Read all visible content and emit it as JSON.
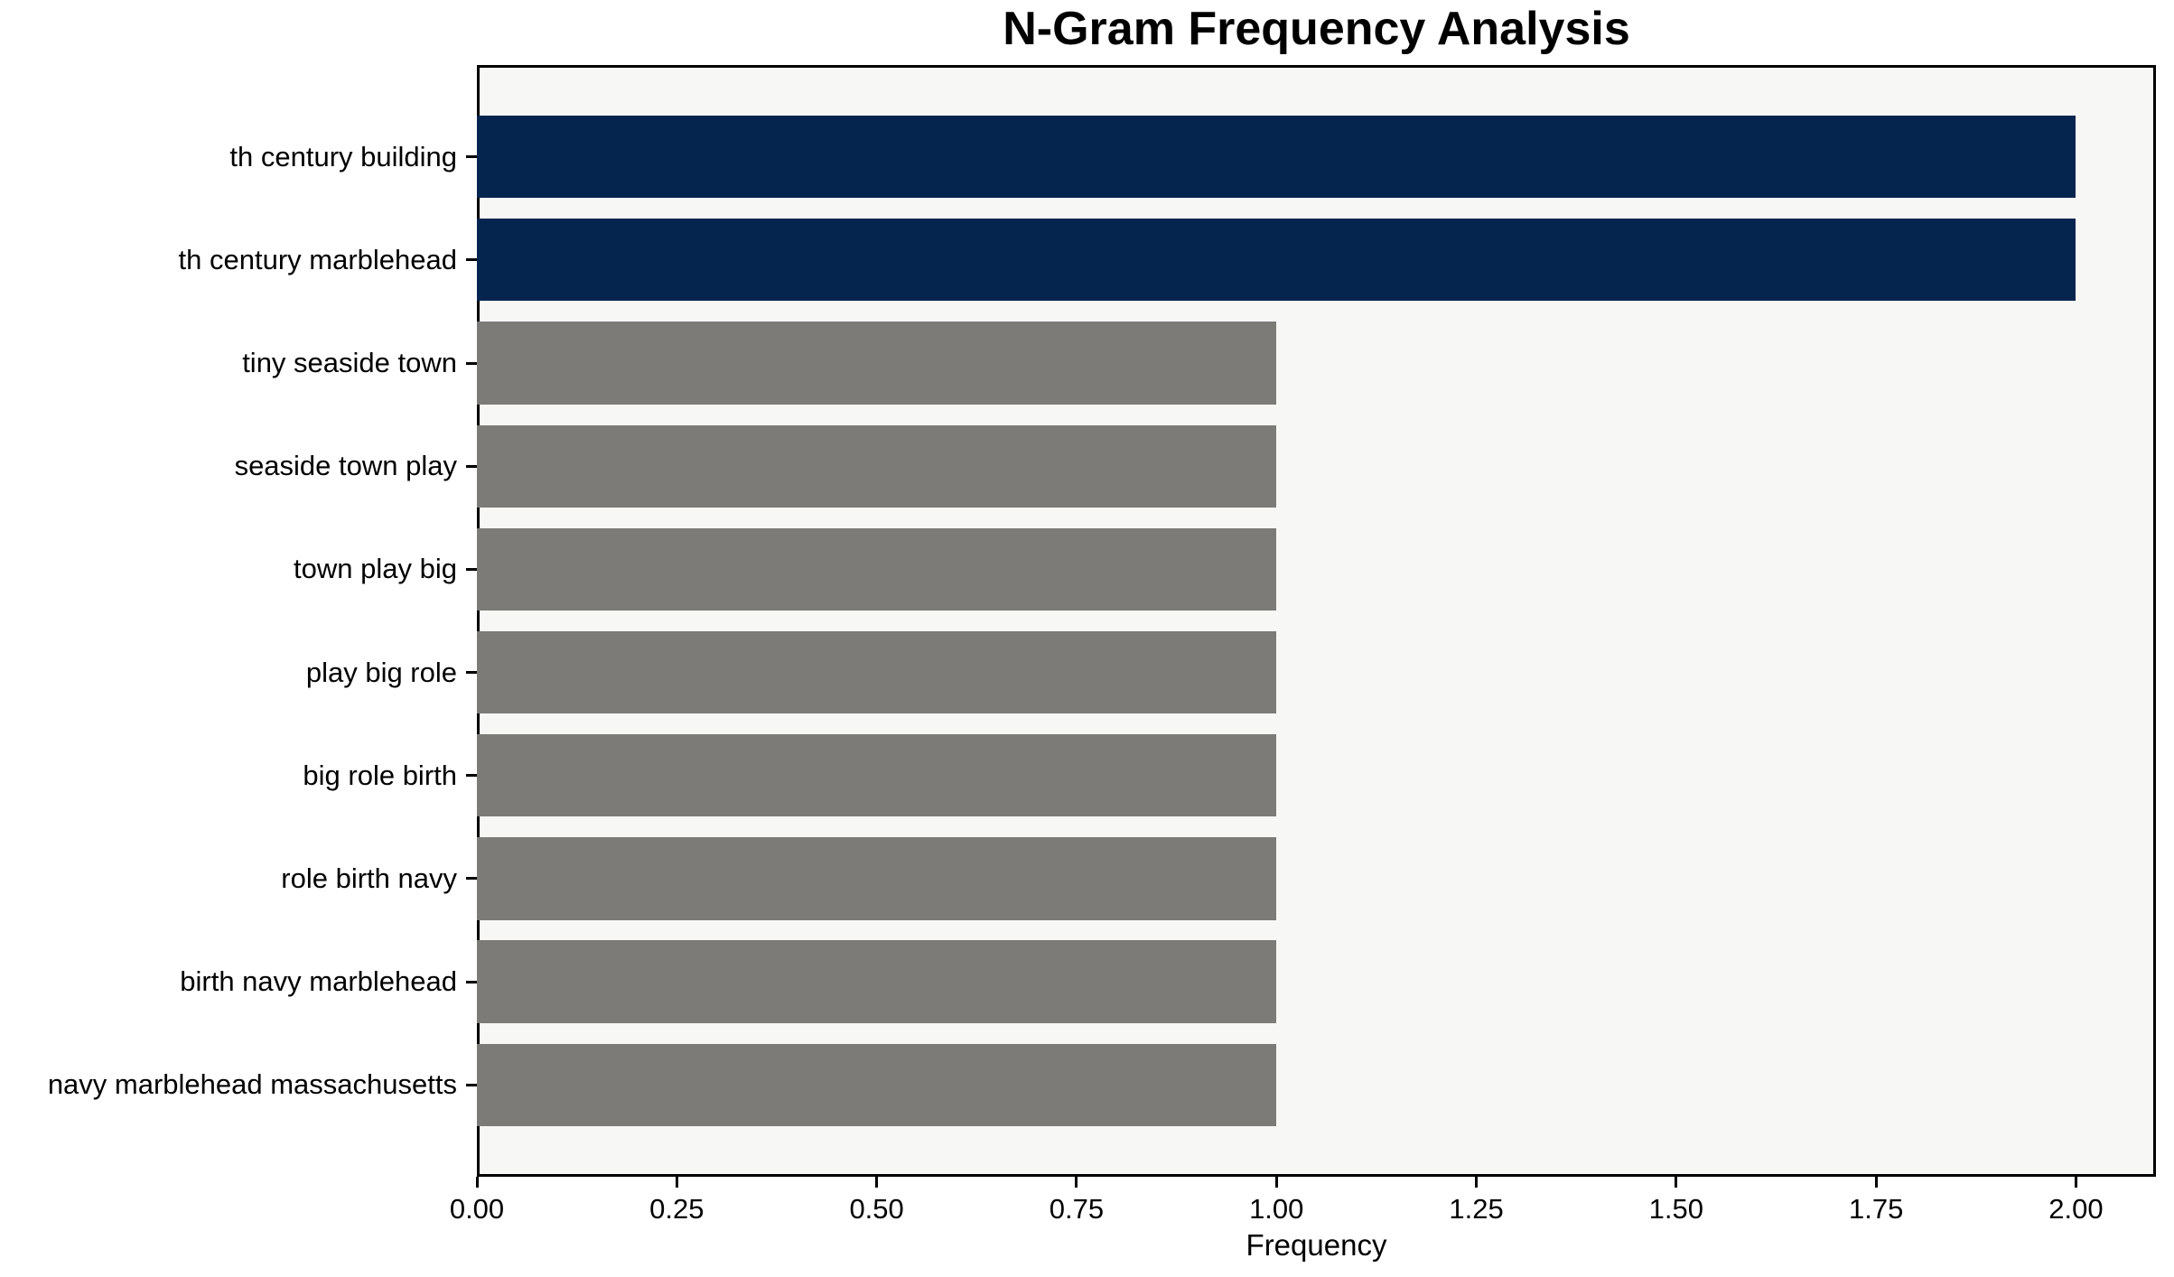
{
  "chart_data": {
    "type": "bar",
    "orientation": "horizontal",
    "title": "N-Gram Frequency Analysis",
    "xlabel": "Frequency",
    "ylabel": "",
    "categories": [
      "th century building",
      "th century marblehead",
      "tiny seaside town",
      "seaside town play",
      "town play big",
      "play big role",
      "big role birth",
      "role birth navy",
      "birth navy marblehead",
      "navy marblehead massachusetts"
    ],
    "values": [
      2,
      2,
      1,
      1,
      1,
      1,
      1,
      1,
      1,
      1
    ],
    "bar_colors": [
      "#05254e",
      "#05254e",
      "#7c7b77",
      "#7c7b77",
      "#7c7b77",
      "#7c7b77",
      "#7c7b77",
      "#7c7b77",
      "#7c7b77",
      "#7c7b77"
    ],
    "xlim": [
      0,
      2.1
    ],
    "x_tick_values": [
      0,
      0.25,
      0.5,
      0.75,
      1.0,
      1.25,
      1.5,
      1.75,
      2.0
    ],
    "x_tick_labels": [
      "0.00",
      "0.25",
      "0.50",
      "0.75",
      "1.00",
      "1.25",
      "1.50",
      "1.75",
      "2.00"
    ],
    "grid": false,
    "legend": null,
    "plot_background": "#f7f7f6",
    "frame_color": "#000000",
    "highlight_color": "#05254e",
    "default_color": "#7c7b77"
  }
}
